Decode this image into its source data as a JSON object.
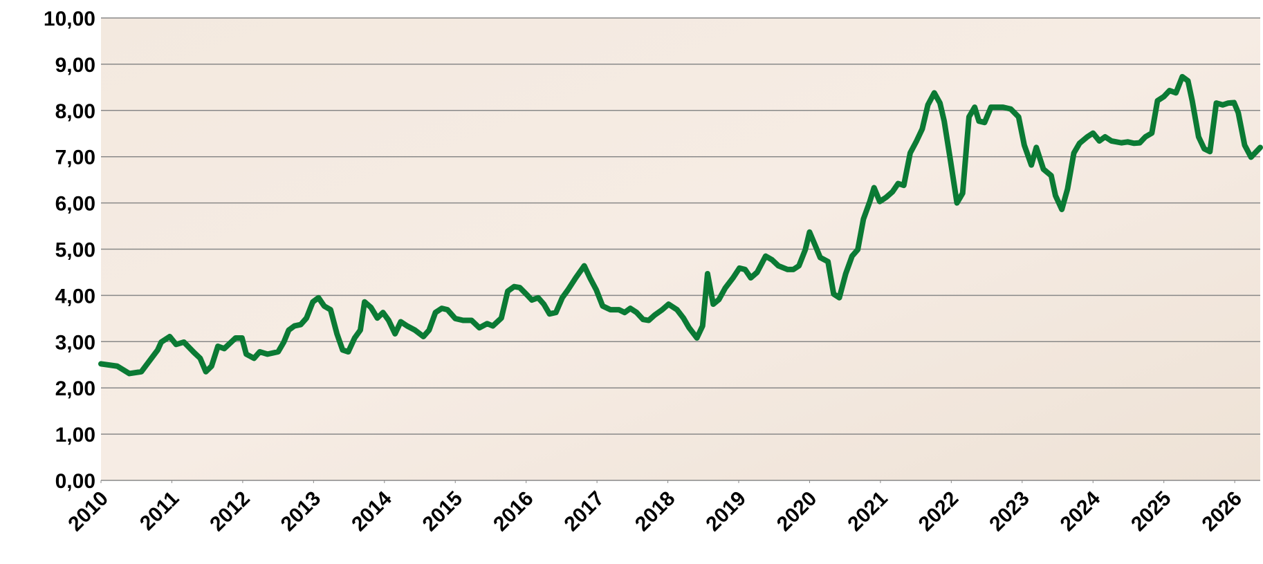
{
  "chart_data": {
    "type": "line",
    "x": [
      2010.0,
      2010.23,
      2010.4,
      2010.57,
      2010.8,
      2010.85,
      2010.97,
      2011.06,
      2011.17,
      2011.31,
      2011.4,
      2011.48,
      2011.56,
      2011.65,
      2011.74,
      2011.9,
      2011.99,
      2012.05,
      2012.16,
      2012.24,
      2012.35,
      2012.5,
      2012.58,
      2012.65,
      2012.73,
      2012.82,
      2012.9,
      2012.99,
      2013.07,
      2013.15,
      2013.24,
      2013.33,
      2013.41,
      2013.49,
      2013.58,
      2013.66,
      2013.72,
      2013.81,
      2013.9,
      2013.98,
      2014.06,
      2014.15,
      2014.23,
      2014.32,
      2014.43,
      2014.55,
      2014.63,
      2014.72,
      2014.81,
      2014.89,
      2015.0,
      2015.11,
      2015.23,
      2015.34,
      2015.45,
      2015.53,
      2015.65,
      2015.74,
      2015.83,
      2015.91,
      2016.02,
      2016.08,
      2016.17,
      2016.25,
      2016.33,
      2016.42,
      2016.51,
      2016.59,
      2016.7,
      2016.82,
      2016.9,
      2016.99,
      2017.08,
      2017.19,
      2017.31,
      2017.39,
      2017.47,
      2017.56,
      2017.65,
      2017.73,
      2017.81,
      2017.92,
      2018.01,
      2018.13,
      2018.22,
      2018.3,
      2018.41,
      2018.49,
      2018.56,
      2018.64,
      2018.72,
      2018.81,
      2018.92,
      2019.01,
      2019.09,
      2019.17,
      2019.26,
      2019.38,
      2019.47,
      2019.56,
      2019.69,
      2019.77,
      2019.85,
      2019.94,
      2020.0,
      2020.08,
      2020.15,
      2020.26,
      2020.34,
      2020.42,
      2020.51,
      2020.6,
      2020.68,
      2020.76,
      2020.85,
      2020.91,
      2020.99,
      2021.08,
      2021.17,
      2021.25,
      2021.33,
      2021.42,
      2021.51,
      2021.59,
      2021.67,
      2021.76,
      2021.84,
      2021.9,
      2021.99,
      2022.08,
      2022.16,
      2022.25,
      2022.33,
      2022.39,
      2022.47,
      2022.56,
      2022.65,
      2022.73,
      2022.84,
      2022.95,
      2023.03,
      2023.13,
      2023.2,
      2023.3,
      2023.41,
      2023.47,
      2023.56,
      2023.64,
      2023.73,
      2023.81,
      2023.92,
      2024.0,
      2024.09,
      2024.17,
      2024.26,
      2024.4,
      2024.49,
      2024.58,
      2024.66,
      2024.74,
      2024.83,
      2024.91,
      2025.0,
      2025.08,
      2025.17,
      2025.26,
      2025.34,
      2025.4,
      2025.49,
      2025.57,
      2025.65,
      2025.74,
      2025.83,
      2025.91,
      2025.99,
      2026.05,
      2026.14,
      2026.23,
      2026.36
    ],
    "series": [
      {
        "color": "#0b7a34",
        "values": [
          2.52,
          2.47,
          2.31,
          2.35,
          2.82,
          2.99,
          3.11,
          2.94,
          2.99,
          2.77,
          2.64,
          2.35,
          2.47,
          2.9,
          2.85,
          3.08,
          3.08,
          2.73,
          2.64,
          2.78,
          2.73,
          2.78,
          2.99,
          3.25,
          3.34,
          3.37,
          3.51,
          3.86,
          3.95,
          3.77,
          3.69,
          3.17,
          2.82,
          2.78,
          3.08,
          3.25,
          3.86,
          3.74,
          3.51,
          3.63,
          3.46,
          3.17,
          3.43,
          3.34,
          3.25,
          3.11,
          3.25,
          3.63,
          3.72,
          3.69,
          3.5,
          3.46,
          3.46,
          3.3,
          3.39,
          3.34,
          3.51,
          4.09,
          4.19,
          4.17,
          4.0,
          3.9,
          3.95,
          3.81,
          3.6,
          3.63,
          3.95,
          4.12,
          4.38,
          4.64,
          4.38,
          4.12,
          3.77,
          3.69,
          3.69,
          3.63,
          3.72,
          3.63,
          3.48,
          3.46,
          3.57,
          3.69,
          3.81,
          3.69,
          3.51,
          3.3,
          3.08,
          3.34,
          4.47,
          3.81,
          3.91,
          4.16,
          4.38,
          4.59,
          4.56,
          4.38,
          4.5,
          4.85,
          4.77,
          4.64,
          4.56,
          4.56,
          4.64,
          4.99,
          5.37,
          5.08,
          4.82,
          4.73,
          4.03,
          3.95,
          4.47,
          4.85,
          4.99,
          5.65,
          6.03,
          6.33,
          6.03,
          6.12,
          6.24,
          6.42,
          6.38,
          7.08,
          7.34,
          7.6,
          8.12,
          8.38,
          8.16,
          7.77,
          6.9,
          6.0,
          6.21,
          7.86,
          8.07,
          7.77,
          7.74,
          8.07,
          8.07,
          8.07,
          8.03,
          7.86,
          7.25,
          6.82,
          7.2,
          6.73,
          6.59,
          6.16,
          5.86,
          6.3,
          7.08,
          7.29,
          7.43,
          7.51,
          7.34,
          7.43,
          7.34,
          7.3,
          7.32,
          7.29,
          7.3,
          7.43,
          7.51,
          8.21,
          8.3,
          8.43,
          8.38,
          8.73,
          8.64,
          8.21,
          7.43,
          7.17,
          7.11,
          8.16,
          8.12,
          8.16,
          8.17,
          7.95,
          7.25,
          6.99,
          7.2
        ]
      }
    ],
    "xlim": [
      2010,
      2026.36
    ],
    "xticks": [
      2010,
      2011,
      2012,
      2013,
      2014,
      2015,
      2016,
      2017,
      2018,
      2019,
      2020,
      2021,
      2022,
      2023,
      2024,
      2025,
      2026
    ],
    "ylim": [
      0,
      10
    ],
    "yticks": [
      {
        "value": 0,
        "label": "0,00"
      },
      {
        "value": 1,
        "label": "1,00"
      },
      {
        "value": 2,
        "label": "2,00"
      },
      {
        "value": 3,
        "label": "3,00"
      },
      {
        "value": 4,
        "label": "4,00"
      },
      {
        "value": 5,
        "label": "5,00"
      },
      {
        "value": 6,
        "label": "6,00"
      },
      {
        "value": 7,
        "label": "7,00"
      },
      {
        "value": 8,
        "label": "8,00"
      },
      {
        "value": 9,
        "label": "9,00"
      },
      {
        "value": 10,
        "label": "10,00"
      }
    ],
    "grid": true
  }
}
